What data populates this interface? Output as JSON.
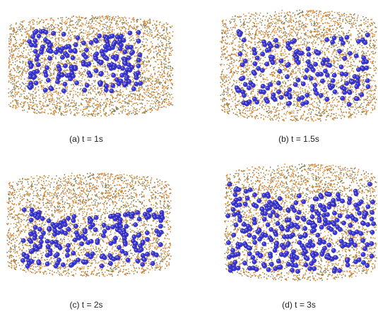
{
  "panels": [
    {
      "caption": "(a) t = 1s"
    },
    {
      "caption": "(b) t = 1.5s"
    },
    {
      "caption": "(c) t = 2s"
    },
    {
      "caption": "(d) t = 3s"
    }
  ]
}
